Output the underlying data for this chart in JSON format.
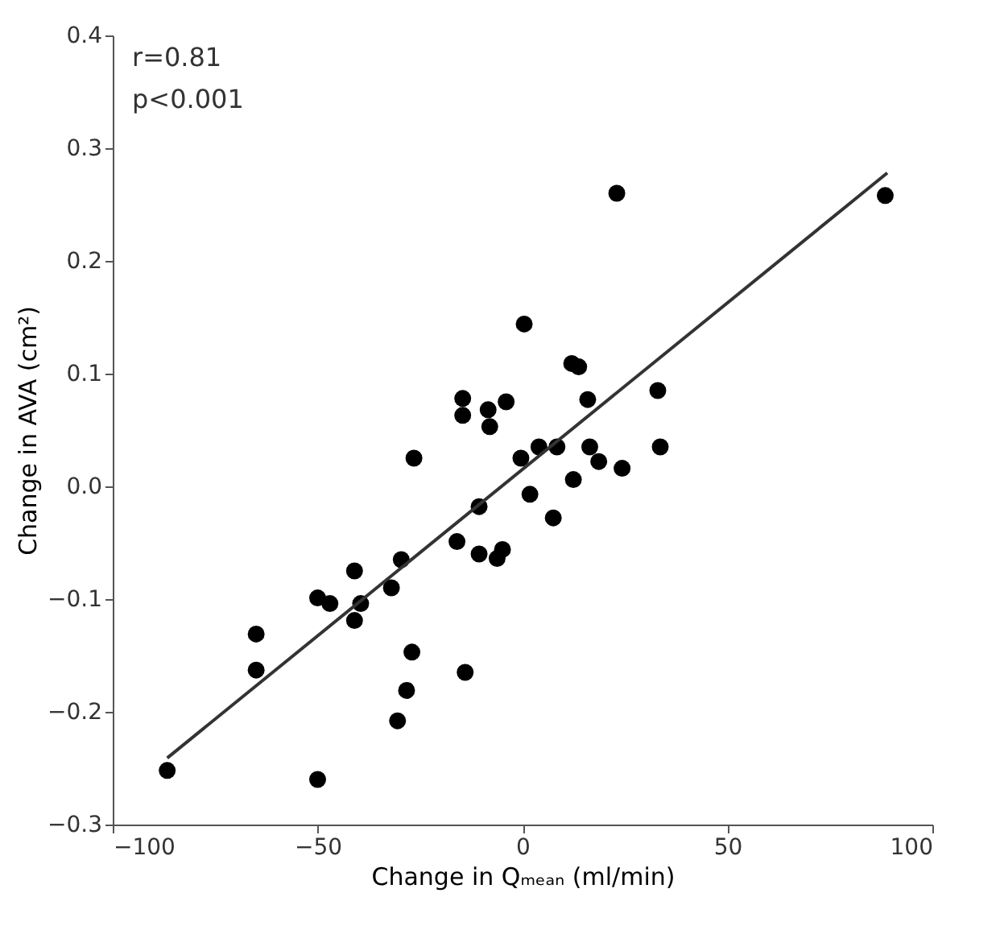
{
  "chart_data": {
    "type": "scatter",
    "xlabel": "Change in Qₘₑₐₙ (ml/min)",
    "ylabel": "Change in AVA (cm²)",
    "annotations": [
      "r=0.81",
      "p<0.001"
    ],
    "xlim": [
      -100,
      100
    ],
    "xticks": [
      -100,
      -50,
      0,
      50,
      100
    ],
    "ylim": [
      -0.3,
      0.4
    ],
    "yticks": [
      {
        "value": -0.3,
        "label": "−0.3"
      },
      {
        "value": -0.2,
        "label": "−0.2"
      },
      {
        "value": -0.1,
        "label": "−0.1"
      },
      {
        "value": 0,
        "label": "0.0"
      },
      0.1,
      0.2,
      0.3,
      0.4
    ],
    "grid": false,
    "series": [
      {
        "marker": "circle",
        "color": "#000000",
        "x": [
          -86.7,
          -65,
          -65,
          -50,
          -50,
          -47,
          -41,
          -39.5,
          -41,
          -32,
          -29.6,
          -26.5,
          -27,
          -28.3,
          -30.5,
          -16,
          -14,
          -10.6,
          -10.6,
          -6.2,
          -4.9,
          -0.4,
          4,
          8.4,
          1.8,
          7.5,
          33.6,
          24.3,
          18.6,
          16.4,
          12.4,
          0.4,
          -14.6,
          -14.6,
          -8.4,
          -8,
          -4,
          12,
          13.7,
          15.9,
          33,
          23,
          88.5
        ],
        "values": [
          -0.252,
          -0.131,
          -0.163,
          -0.26,
          -0.099,
          -0.104,
          -0.075,
          -0.104,
          -0.119,
          -0.09,
          -0.065,
          0.025,
          -0.147,
          -0.181,
          -0.208,
          -0.049,
          -0.165,
          -0.018,
          -0.06,
          -0.064,
          -0.056,
          0.025,
          0.035,
          0.035,
          -0.007,
          -0.028,
          0.035,
          0.016,
          0.022,
          0.035,
          0.006,
          0.144,
          0.078,
          0.063,
          0.068,
          0.053,
          0.075,
          0.109,
          0.106,
          0.077,
          0.085,
          0.26,
          0.258
        ]
      },
      {
        "type": "line",
        "color": "#333333",
        "line_style": "solid",
        "x": [
          -86.7,
          89
        ],
        "values": [
          -0.241,
          0.278
        ]
      }
    ]
  }
}
